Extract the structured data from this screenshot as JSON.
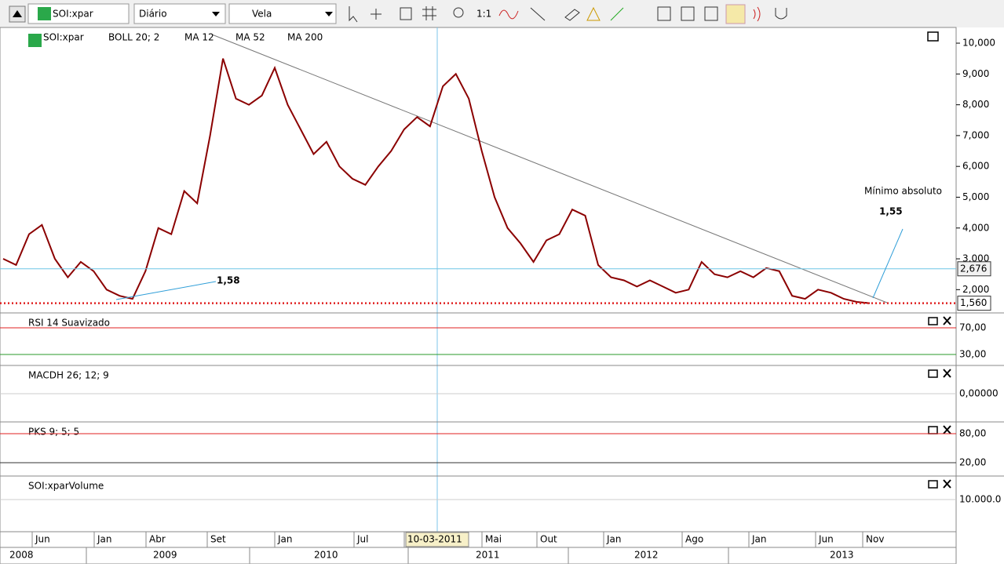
{
  "toolbar": {
    "symbol": "SOI:xpar",
    "period": "Diário",
    "style": "Vela",
    "zoom": "1:1"
  },
  "chart_data": {
    "type": "line",
    "legend": [
      "SOI:xpar",
      "BOLL 20; 2",
      "MA 12",
      "MA 52",
      "MA 200"
    ],
    "x": [
      "2008-03",
      "2008-04",
      "2008-05",
      "2008-06",
      "2008-07",
      "2008-08",
      "2008-09",
      "2008-10",
      "2008-11",
      "2008-12",
      "2009-01",
      "2009-02",
      "2009-03",
      "2009-04",
      "2009-05",
      "2009-06",
      "2009-07",
      "2009-08",
      "2009-09",
      "2009-10",
      "2009-11",
      "2009-12",
      "2010-01",
      "2010-02",
      "2010-03",
      "2010-04",
      "2010-05",
      "2010-06",
      "2010-07",
      "2010-08",
      "2010-09",
      "2010-10",
      "2010-11",
      "2010-12",
      "2011-01",
      "2011-02",
      "2011-03",
      "2011-04",
      "2011-05",
      "2011-06",
      "2011-07",
      "2011-08",
      "2011-09",
      "2011-10",
      "2011-11",
      "2011-12",
      "2012-01",
      "2012-02",
      "2012-03",
      "2012-04",
      "2012-05",
      "2012-06",
      "2012-07",
      "2012-08",
      "2012-09",
      "2012-10",
      "2012-11",
      "2012-12",
      "2013-01",
      "2013-02",
      "2013-03",
      "2013-04",
      "2013-05",
      "2013-06",
      "2013-07",
      "2013-08",
      "2013-09",
      "2013-10"
    ],
    "series": [
      {
        "name": "SOI:xpar",
        "color": "#8b0000",
        "values": [
          3.0,
          2.8,
          3.8,
          4.1,
          3.0,
          2.4,
          2.9,
          2.6,
          2.0,
          1.8,
          1.7,
          2.6,
          4.0,
          3.8,
          5.2,
          4.8,
          7.0,
          9.5,
          8.2,
          8.0,
          8.3,
          9.2,
          8.0,
          7.2,
          6.4,
          6.8,
          6.0,
          5.6,
          5.4,
          6.0,
          6.5,
          7.2,
          7.6,
          7.3,
          8.6,
          9.0,
          8.2,
          6.5,
          5.0,
          4.0,
          3.5,
          2.9,
          3.6,
          3.8,
          4.6,
          4.4,
          2.8,
          2.4,
          2.3,
          2.1,
          2.3,
          2.1,
          1.9,
          2.0,
          2.9,
          2.5,
          2.4,
          2.6,
          2.4,
          2.7,
          2.6,
          1.8,
          1.7,
          2.0,
          1.9,
          1.7,
          1.6,
          1.56
        ]
      }
    ],
    "ylim": [
      1.27,
      10.51
    ],
    "yticks": [
      {
        "value": 10,
        "label": "10,000"
      },
      {
        "value": 9,
        "label": "9,000"
      },
      {
        "value": 8,
        "label": "8,000"
      },
      {
        "value": 7,
        "label": "7,000"
      },
      {
        "value": 6,
        "label": "6,000"
      },
      {
        "value": 5,
        "label": "5,000"
      },
      {
        "value": 4,
        "label": "4,000"
      },
      {
        "value": 3,
        "label": "3,000"
      },
      {
        "value": 2,
        "label": "2,000"
      }
    ],
    "levels": [
      {
        "value": 2.676,
        "label": "2,676",
        "color": "#6ec6e6"
      },
      {
        "value": 1.56,
        "label": "1,560",
        "color": "#e02020"
      }
    ],
    "annotations": {
      "low_2009": "1,58",
      "low_2013": "1,55",
      "note": "Mínimo absoluto"
    },
    "month_labels": [
      "Jun",
      "Jan",
      "Abr",
      "Set",
      "Jan",
      "Jul",
      "10-03-2011",
      "Mai",
      "Out",
      "Jan",
      "Ago",
      "Jan",
      "Jun",
      "Nov"
    ],
    "year_labels": [
      "2008",
      "2009",
      "2010",
      "2011",
      "2012",
      "2013"
    ]
  },
  "panels": [
    {
      "name": "RSI 14 Suavizado",
      "ylim": [
        14.7,
        91.2
      ],
      "yticks": [
        {
          "value": 70,
          "label": "70,00",
          "color": "#e02020"
        },
        {
          "value": 30,
          "label": "30,00",
          "color": "#2a9a2a"
        }
      ]
    },
    {
      "name": "MACDH 26; 12; 9",
      "ylim": [
        -1,
        1
      ],
      "yticks": [
        {
          "value": 0,
          "label": "0,00000",
          "color": "#cccccc"
        }
      ]
    },
    {
      "name": "PKS 9; 5; 5",
      "ylim": [
        -5.9,
        102.7
      ],
      "yticks": [
        {
          "value": 80,
          "label": "80,00",
          "color": "#e02020"
        },
        {
          "value": 20,
          "label": "20,00",
          "color": "#333333"
        }
      ]
    },
    {
      "name": "SOI:xparVolume",
      "ylim": [
        0,
        17250
      ],
      "yticks": [
        {
          "value": 10000,
          "label": "10.000.0",
          "color": "#cccccc"
        }
      ]
    }
  ]
}
